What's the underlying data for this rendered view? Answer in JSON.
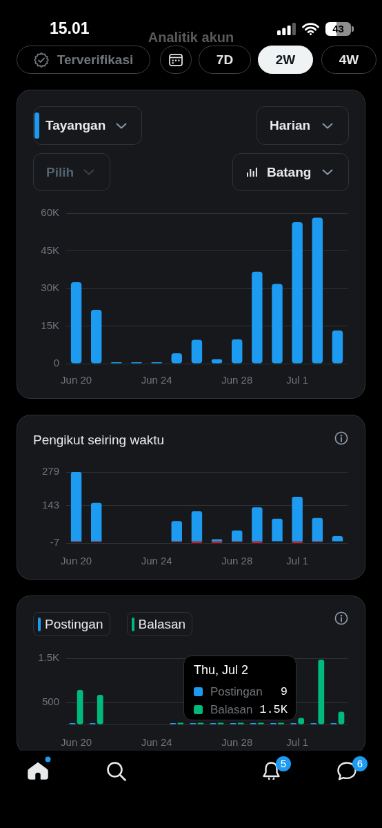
{
  "chart_data": [
    {
      "type": "other",
      "title": "Analitik akun",
      "annotations": [
        "15.01",
        "43",
        "Terverifikasi",
        "7D",
        "2W",
        "4W"
      ]
    },
    {
      "type": "bar",
      "categories": [
        "Jun 20",
        null,
        null,
        null,
        "Jun 24",
        null,
        null,
        null,
        "Jun 28",
        null,
        null,
        "Jul 1",
        null,
        null
      ],
      "series": [
        {
          "name": "Tayangan",
          "color": "#1d9bf0",
          "values": [
            32500,
            21500,
            300,
            300,
            300,
            4100,
            9500,
            1800,
            9700,
            36700,
            31800,
            56400,
            58200,
            13200
          ]
        }
      ],
      "ylim": [
        0,
        60000
      ],
      "yticks": [
        0,
        {
          "value": 15000,
          "label": "15K"
        },
        {
          "value": 30000,
          "label": "30K"
        },
        {
          "value": 45000,
          "label": "45K"
        },
        {
          "value": 60000,
          "label": "60K"
        }
      ],
      "grid": "y",
      "legend": "top left",
      "annotations": [
        "Harian",
        "Pilih",
        "Batang"
      ]
    },
    {
      "type": "bar",
      "title": "Pengikut seiring waktu",
      "categories": [
        "Jun 20",
        null,
        null,
        null,
        "Jun 24",
        null,
        null,
        null,
        "Jun 28",
        null,
        null,
        "Jul 1",
        null,
        null
      ],
      "stacked": true,
      "series": [
        {
          "color": "#1d9bf0",
          "values": [
            279,
            155,
            0,
            0,
            0,
            81,
            121,
            8,
            44,
            137,
            91,
            179,
            94,
            21
          ]
        },
        {
          "color": "#f4212e",
          "values": [
            -3,
            -3,
            0,
            0,
            0,
            -3,
            -6,
            -6,
            -3,
            -6,
            0,
            -6,
            -3,
            0
          ]
        }
      ],
      "ylim": [
        -7,
        279
      ],
      "yticks": [
        -7,
        143,
        279
      ],
      "grid": "y"
    },
    {
      "type": "bar",
      "categories": [
        "Jun 20",
        null,
        null,
        null,
        "Jun 24",
        null,
        null,
        null,
        "Jun 28",
        null,
        null,
        "Jul 1",
        null,
        null
      ],
      "series": [
        {
          "name": "Postingan",
          "color": "#1d9bf0",
          "values": [
            10,
            10,
            null,
            null,
            null,
            10,
            10,
            10,
            10,
            10,
            10,
            10,
            9,
            10
          ]
        },
        {
          "name": "Balasan",
          "color": "#00ba7c",
          "values": [
            780,
            670,
            null,
            null,
            null,
            40,
            40,
            40,
            40,
            40,
            40,
            150,
            1470,
            290
          ]
        }
      ],
      "ylim": [
        0,
        1500
      ],
      "yticks": [
        {
          "value": 0,
          "label": null
        },
        500,
        {
          "value": 1500,
          "label": "1.5K"
        }
      ],
      "grid": "y",
      "legend": "top left",
      "annotations": [
        "Thu, Jul 2",
        "Postingan",
        "9",
        "Balasan",
        "1.5K"
      ]
    },
    {
      "type": "other",
      "annotations": [
        "5",
        "6"
      ]
    }
  ]
}
